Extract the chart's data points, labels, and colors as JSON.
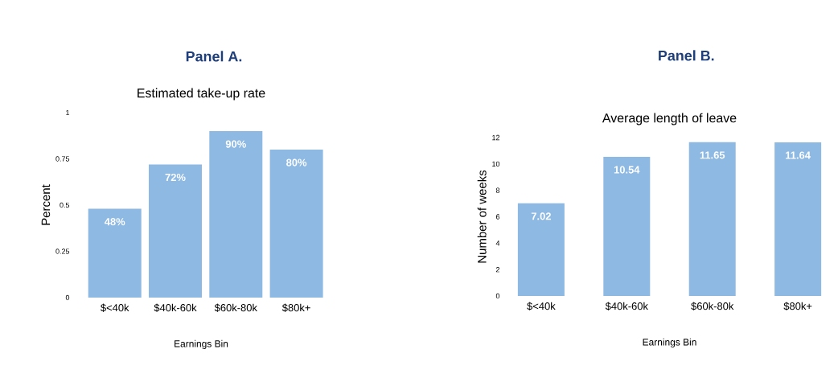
{
  "chart_data": [
    {
      "type": "bar",
      "title": "Panel A.",
      "subtitle": "Estimated take-up rate",
      "xlabel": "Earnings Bin",
      "ylabel": "Percent",
      "categories": [
        "$<40k",
        "$40k-60k",
        "$60k-80k",
        "$80k+"
      ],
      "values": [
        0.48,
        0.72,
        0.9,
        0.8
      ],
      "value_labels": [
        "48%",
        "72%",
        "90%",
        "80%"
      ],
      "color": "#8db9e3",
      "ylim": [
        0,
        1
      ],
      "yticks": [
        0,
        0.25,
        0.5,
        0.75,
        1
      ]
    },
    {
      "type": "bar",
      "title": "Panel B.",
      "subtitle": "Average length of leave",
      "xlabel": "Earnings Bin",
      "ylabel": "Number of weeks",
      "categories": [
        "$<40k",
        "$40k-60k",
        "$60k-80k",
        "$80k+"
      ],
      "values": [
        7.02,
        10.54,
        11.65,
        11.64
      ],
      "data_labels": true,
      "color": "#8db9e3",
      "ylim": [
        0,
        12
      ],
      "yticks": [
        0,
        2,
        4,
        6,
        8,
        10,
        12
      ]
    }
  ]
}
